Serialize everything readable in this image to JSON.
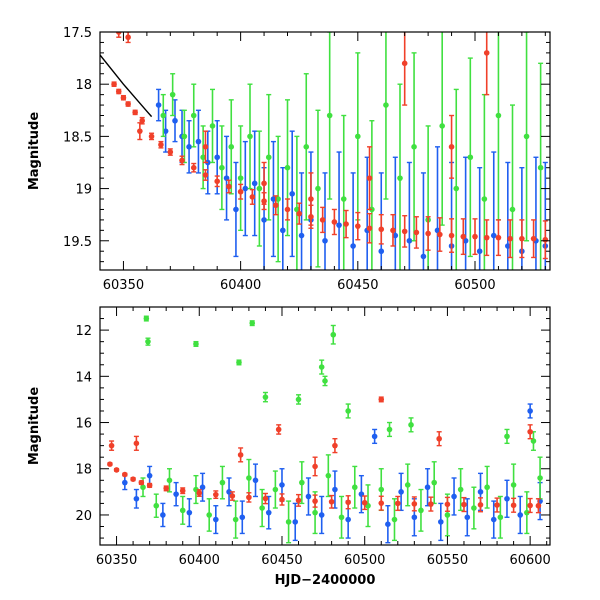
{
  "chart_data": [
    {
      "type": "scatter",
      "title": "",
      "xlabel": "",
      "ylabel": "Magnitude",
      "xlim": [
        60340,
        60532
      ],
      "ylim": [
        19.78,
        17.5
      ],
      "y_inverted": true,
      "grid": false,
      "xticks": [
        "60350",
        "60400",
        "60450",
        "60500"
      ],
      "yticks": [
        "17.5",
        "18",
        "18.5",
        "19",
        "19.5"
      ],
      "xtick_values": [
        60350,
        60400,
        60450,
        60500
      ],
      "ytick_values": [
        17.5,
        18,
        18.5,
        19,
        19.5
      ],
      "colors": {
        "red": "#f0402a",
        "blue": "#1f5ff0",
        "green": "#40e040",
        "model": "#000000"
      },
      "model_curve": {
        "x": [
          60340,
          60345,
          60350,
          60355,
          60360,
          60362
        ],
        "y": [
          17.72,
          17.86,
          18.0,
          18.13,
          18.26,
          18.31
        ]
      },
      "series": [
        {
          "color": "#f0402a",
          "x": [
            60346,
            60348,
            60350,
            60352,
            60355,
            60358,
            60362,
            60366,
            60370,
            60375,
            60380,
            60385,
            60390,
            60395,
            60400,
            60405,
            60410,
            60415,
            60420,
            60425,
            60430,
            60435,
            60440,
            60445,
            60450,
            60455,
            60460,
            60465,
            60470,
            60475,
            60480,
            60485,
            60490,
            60495,
            60500,
            60505,
            60510,
            60515,
            60520,
            60525,
            60530
          ],
          "y": [
            18.0,
            18.07,
            18.13,
            18.19,
            18.27,
            18.35,
            18.5,
            18.58,
            18.65,
            18.73,
            18.8,
            18.87,
            18.93,
            18.98,
            19.03,
            19.08,
            19.12,
            19.16,
            19.2,
            19.24,
            19.27,
            19.3,
            19.32,
            19.34,
            19.36,
            19.38,
            19.39,
            19.4,
            19.41,
            19.42,
            19.43,
            19.44,
            19.45,
            19.46,
            19.46,
            19.47,
            19.47,
            19.48,
            19.48,
            19.48,
            19.49
          ],
          "err": [
            0.02,
            0.02,
            0.02,
            0.02,
            0.02,
            0.03,
            0.03,
            0.03,
            0.03,
            0.04,
            0.04,
            0.05,
            0.05,
            0.06,
            0.07,
            0.07,
            0.08,
            0.09,
            0.1,
            0.1,
            0.11,
            0.12,
            0.12,
            0.13,
            0.13,
            0.14,
            0.14,
            0.15,
            0.15,
            0.15,
            0.16,
            0.16,
            0.16,
            0.17,
            0.17,
            0.17,
            0.17,
            0.18,
            0.18,
            0.18,
            0.18
          ]
        },
        {
          "color": "#f0402a",
          "x": [
            60348,
            60352,
            60357,
            60385,
            60410,
            60430,
            60455,
            60470,
            60490,
            60505
          ],
          "y": [
            17.5,
            17.55,
            18.45,
            18.6,
            18.95,
            19.1,
            18.9,
            17.8,
            18.6,
            17.7
          ],
          "err": [
            0.05,
            0.05,
            0.08,
            0.15,
            0.2,
            0.25,
            0.3,
            0.4,
            0.3,
            0.4
          ]
        },
        {
          "color": "#1f5ff0",
          "x": [
            60365,
            60368,
            60372,
            60375,
            60378,
            60382,
            60386,
            60390,
            60394,
            60398,
            60402,
            60406,
            60410,
            60414,
            60418,
            60422,
            60426,
            60430,
            60436,
            60442,
            60448,
            60454,
            60460,
            60466,
            60472,
            60478,
            60484,
            60490,
            60496,
            60502,
            60508,
            60514,
            60520,
            60526,
            60530
          ],
          "y": [
            18.2,
            18.45,
            18.35,
            18.5,
            18.6,
            18.55,
            18.75,
            18.7,
            18.9,
            19.2,
            19.0,
            18.95,
            19.3,
            19.1,
            19.4,
            19.05,
            19.45,
            19.3,
            19.5,
            19.35,
            19.55,
            19.4,
            19.6,
            19.45,
            19.5,
            19.65,
            19.4,
            19.55,
            19.5,
            19.6,
            19.45,
            19.55,
            19.6,
            19.5,
            19.55
          ],
          "err": [
            0.15,
            0.2,
            0.2,
            0.25,
            0.25,
            0.3,
            0.3,
            0.35,
            0.4,
            0.45,
            0.45,
            0.5,
            0.5,
            0.55,
            0.6,
            0.6,
            0.6,
            0.65,
            0.65,
            0.7,
            0.7,
            0.7,
            0.75,
            0.75,
            0.75,
            0.8,
            0.8,
            0.8,
            0.8,
            0.8,
            0.8,
            0.8,
            0.8,
            0.8,
            0.8
          ]
        },
        {
          "color": "#40e040",
          "x": [
            60367,
            60371,
            60376,
            60380,
            60384,
            60388,
            60392,
            60396,
            60400,
            60404,
            60408,
            60412,
            60416,
            60420,
            60424,
            60428,
            60433,
            60438,
            60444,
            60450,
            60456,
            60462,
            60468,
            60474,
            60480,
            60486,
            60492,
            60498,
            60504,
            60510,
            60516,
            60522,
            60528
          ],
          "y": [
            18.3,
            18.1,
            18.5,
            18.3,
            18.7,
            18.4,
            18.8,
            18.6,
            18.9,
            18.5,
            19.0,
            18.7,
            19.1,
            18.8,
            19.2,
            18.6,
            19.0,
            18.3,
            19.1,
            18.5,
            19.2,
            18.2,
            18.9,
            18.6,
            19.3,
            18.4,
            19.0,
            18.7,
            19.1,
            18.3,
            19.2,
            18.5,
            18.8
          ],
          "err": [
            0.2,
            0.2,
            0.25,
            0.3,
            0.3,
            0.35,
            0.4,
            0.45,
            0.5,
            0.5,
            0.55,
            0.6,
            0.6,
            0.65,
            0.7,
            0.7,
            0.75,
            0.8,
            0.8,
            0.8,
            0.85,
            0.9,
            0.9,
            0.9,
            0.9,
            0.95,
            0.95,
            0.95,
            1.0,
            1.0,
            1.0,
            1.0,
            1.0
          ]
        }
      ]
    },
    {
      "type": "scatter",
      "title": "",
      "xlabel": "HJD−2400000",
      "ylabel": "Magnitude",
      "xlim": [
        60340,
        60612
      ],
      "ylim": [
        21.3,
        11.0
      ],
      "y_inverted": true,
      "grid": false,
      "xticks": [
        "60350",
        "60400",
        "60450",
        "60500",
        "60550",
        "60600"
      ],
      "yticks": [
        "12",
        "14",
        "16",
        "18",
        "20"
      ],
      "xtick_values": [
        60350,
        60400,
        60450,
        60500,
        60550,
        60600
      ],
      "ytick_values": [
        12,
        14,
        16,
        18,
        20
      ],
      "colors": {
        "red": "#f0402a",
        "blue": "#1f5ff0",
        "green": "#40e040"
      },
      "series": [
        {
          "color": "#f0402a",
          "x": [
            60346,
            60350,
            60355,
            60360,
            60365,
            60370,
            60380,
            60390,
            60400,
            60410,
            60420,
            60430,
            60440,
            60450,
            60460,
            60470,
            60480,
            60490,
            60500,
            60510,
            60520,
            60530,
            60540,
            60550,
            60560,
            60570,
            60580,
            60590,
            60600,
            60605
          ],
          "y": [
            17.8,
            18.05,
            18.25,
            18.45,
            18.6,
            18.72,
            18.85,
            18.95,
            19.05,
            19.12,
            19.18,
            19.24,
            19.29,
            19.33,
            19.37,
            19.4,
            19.43,
            19.45,
            19.47,
            19.49,
            19.5,
            19.52,
            19.53,
            19.54,
            19.55,
            19.56,
            19.57,
            19.58,
            19.59,
            19.6
          ],
          "err": [
            0.05,
            0.05,
            0.05,
            0.06,
            0.07,
            0.08,
            0.1,
            0.12,
            0.14,
            0.16,
            0.18,
            0.2,
            0.22,
            0.24,
            0.25,
            0.26,
            0.27,
            0.28,
            0.29,
            0.3,
            0.3,
            0.3,
            0.3,
            0.3,
            0.3,
            0.3,
            0.3,
            0.3,
            0.3,
            0.3
          ]
        },
        {
          "color": "#f0402a",
          "x": [
            60347,
            60362,
            60425,
            60448,
            60470,
            60482,
            60510,
            60545,
            60600
          ],
          "y": [
            17.0,
            16.9,
            17.4,
            16.3,
            17.9,
            17.0,
            15.0,
            16.7,
            16.4
          ],
          "err": [
            0.2,
            0.3,
            0.3,
            0.2,
            0.4,
            0.3,
            0.1,
            0.3,
            0.3
          ]
        },
        {
          "color": "#1f5ff0",
          "x": [
            60355,
            60362,
            60370,
            60378,
            60386,
            60394,
            60402,
            60410,
            60418,
            60426,
            60434,
            60442,
            60450,
            60458,
            60466,
            60474,
            60482,
            60490,
            60498,
            60506,
            60514,
            60522,
            60530,
            60538,
            60546,
            60554,
            60562,
            60570,
            60578,
            60586,
            60594,
            60600,
            60606
          ],
          "y": [
            18.6,
            19.3,
            18.3,
            20.0,
            19.1,
            19.9,
            18.8,
            20.2,
            19.0,
            20.1,
            18.5,
            19.9,
            18.7,
            20.3,
            19.2,
            20.0,
            18.9,
            20.2,
            19.1,
            16.6,
            20.4,
            19.0,
            20.1,
            18.8,
            20.3,
            19.2,
            20.1,
            19.0,
            20.2,
            19.3,
            20.0,
            15.5,
            19.4
          ],
          "err": [
            0.3,
            0.4,
            0.4,
            0.5,
            0.5,
            0.6,
            0.6,
            0.6,
            0.6,
            0.7,
            0.7,
            0.7,
            0.7,
            0.8,
            0.8,
            0.8,
            0.8,
            0.8,
            0.8,
            0.3,
            0.8,
            0.8,
            0.8,
            0.8,
            0.8,
            0.8,
            0.8,
            0.8,
            0.8,
            0.8,
            0.8,
            0.3,
            0.8
          ]
        },
        {
          "color": "#40e040",
          "x": [
            60368,
            60369,
            60398,
            60424,
            60432,
            60440,
            60460,
            60474,
            60476,
            60481,
            60490,
            60515,
            60528,
            60586,
            60602
          ],
          "y": [
            11.5,
            12.5,
            12.6,
            13.4,
            11.7,
            14.9,
            15.0,
            13.6,
            14.2,
            12.2,
            15.5,
            16.3,
            16.1,
            16.6,
            16.8
          ],
          "err": [
            0.1,
            0.15,
            0.1,
            0.1,
            0.1,
            0.2,
            0.2,
            0.3,
            0.2,
            0.4,
            0.3,
            0.3,
            0.3,
            0.3,
            0.4
          ]
        },
        {
          "color": "#40e040",
          "x": [
            60366,
            60374,
            60382,
            60390,
            60398,
            60406,
            60414,
            60422,
            60430,
            60438,
            60446,
            60454,
            60462,
            60470,
            60478,
            60486,
            60494,
            60502,
            60510,
            60518,
            60526,
            60534,
            60542,
            60550,
            60558,
            60566,
            60574,
            60582,
            60590,
            60598,
            60606
          ],
          "y": [
            18.8,
            19.6,
            18.5,
            19.8,
            18.9,
            20.0,
            18.6,
            20.2,
            18.4,
            19.7,
            18.9,
            20.3,
            18.6,
            19.9,
            18.3,
            20.1,
            18.8,
            19.6,
            18.9,
            20.2,
            18.7,
            19.8,
            18.6,
            20.0,
            18.9,
            19.7,
            18.8,
            20.1,
            18.7,
            19.9,
            18.4
          ],
          "err": [
            0.4,
            0.5,
            0.5,
            0.6,
            0.6,
            0.7,
            0.7,
            0.8,
            0.8,
            0.8,
            0.8,
            0.9,
            0.9,
            0.9,
            0.9,
            0.9,
            0.9,
            0.9,
            0.9,
            0.9,
            0.9,
            0.9,
            0.9,
            0.9,
            0.9,
            0.9,
            0.9,
            0.9,
            0.9,
            0.9,
            0.9
          ]
        }
      ]
    }
  ]
}
